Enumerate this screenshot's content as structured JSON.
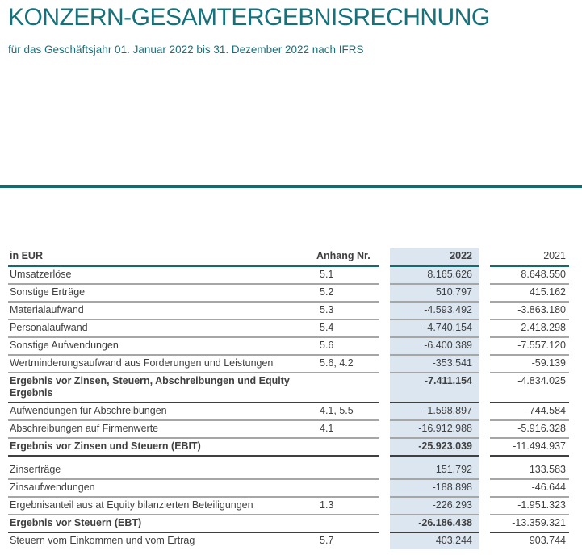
{
  "page": {
    "title": "KONZERN-GESAMTERGEBNISRECHNUNG",
    "subtitle": "für das Geschäftsjahr 01. Januar 2022 bis 31. Dezember 2022 nach IFRS"
  },
  "colors": {
    "teal_text": "#17717b",
    "teal_line": "#146a6c",
    "band_blue": "#dce6f1",
    "grid_gray": "#a6a6a6",
    "text_dark": "#3f3f3f"
  },
  "table": {
    "headers": {
      "label": "in EUR",
      "anhang": "Anhang Nr.",
      "y2022": "2022",
      "y2021": "2021"
    },
    "rows": [
      {
        "label": "Umsatzerlöse",
        "anhang": "5.1",
        "v2022": "8.165.626",
        "v2021": "8.648.550",
        "bold": false
      },
      {
        "label": "Sonstige Erträge",
        "anhang": "5.2",
        "v2022": "510.797",
        "v2021": "415.162",
        "bold": false
      },
      {
        "label": "Materialaufwand",
        "anhang": "5.3",
        "v2022": "-4.593.492",
        "v2021": "-3.863.180",
        "bold": false
      },
      {
        "label": "Personalaufwand",
        "anhang": "5.4",
        "v2022": "-4.740.154",
        "v2021": "-2.418.298",
        "bold": false
      },
      {
        "label": "Sonstige Aufwendungen",
        "anhang": "5.6",
        "v2022": "-6.400.389",
        "v2021": "-7.557.120",
        "bold": false
      },
      {
        "label": "Wertminderungsaufwand aus Forderungen und Leistungen",
        "anhang": "5.6, 4.2",
        "v2022": "-353.541",
        "v2021": "-59.139",
        "bold": false
      },
      {
        "label": "Ergebnis vor Zinsen, Steuern, Abschreibungen und Equity Ergebnis",
        "anhang": "",
        "v2022": "-7.411.154",
        "v2021": "-4.834.025",
        "bold": true
      },
      {
        "label": "Aufwendungen für Abschreibungen",
        "anhang": "4.1, 5.5",
        "v2022": "-1.598.897",
        "v2021": "-744.584",
        "bold": false
      },
      {
        "label": "Abschreibungen auf Firmenwerte",
        "anhang": "4.1",
        "v2022": "-16.912.988",
        "v2021": "-5.916.328",
        "bold": false
      },
      {
        "label": "Ergebnis vor Zinsen und Steuern (EBIT)",
        "anhang": "",
        "v2022": "-25.923.039",
        "v2021": "-11.494.937",
        "bold": true,
        "spacer_after": true
      },
      {
        "label": "Zinserträge",
        "anhang": "",
        "v2022": "151.792",
        "v2021": "133.583",
        "bold": false
      },
      {
        "label": "Zinsaufwendungen",
        "anhang": "",
        "v2022": "-188.898",
        "v2021": "-46.644",
        "bold": false
      },
      {
        "label": "Ergebnisanteil aus at Equity bilanzierten Beteiligungen",
        "anhang": "1.3",
        "v2022": "-226.293",
        "v2021": "-1.951.323",
        "bold": false
      },
      {
        "label": "Ergebnis vor Steuern (EBT)",
        "anhang": "",
        "v2022": "-26.186.438",
        "v2021": "-13.359.321",
        "bold": true
      },
      {
        "label": "Steuern vom Einkommen und vom Ertrag",
        "anhang": "5.7",
        "v2022": "403.244",
        "v2021": "903.744",
        "bold": false,
        "partial": true
      }
    ]
  }
}
